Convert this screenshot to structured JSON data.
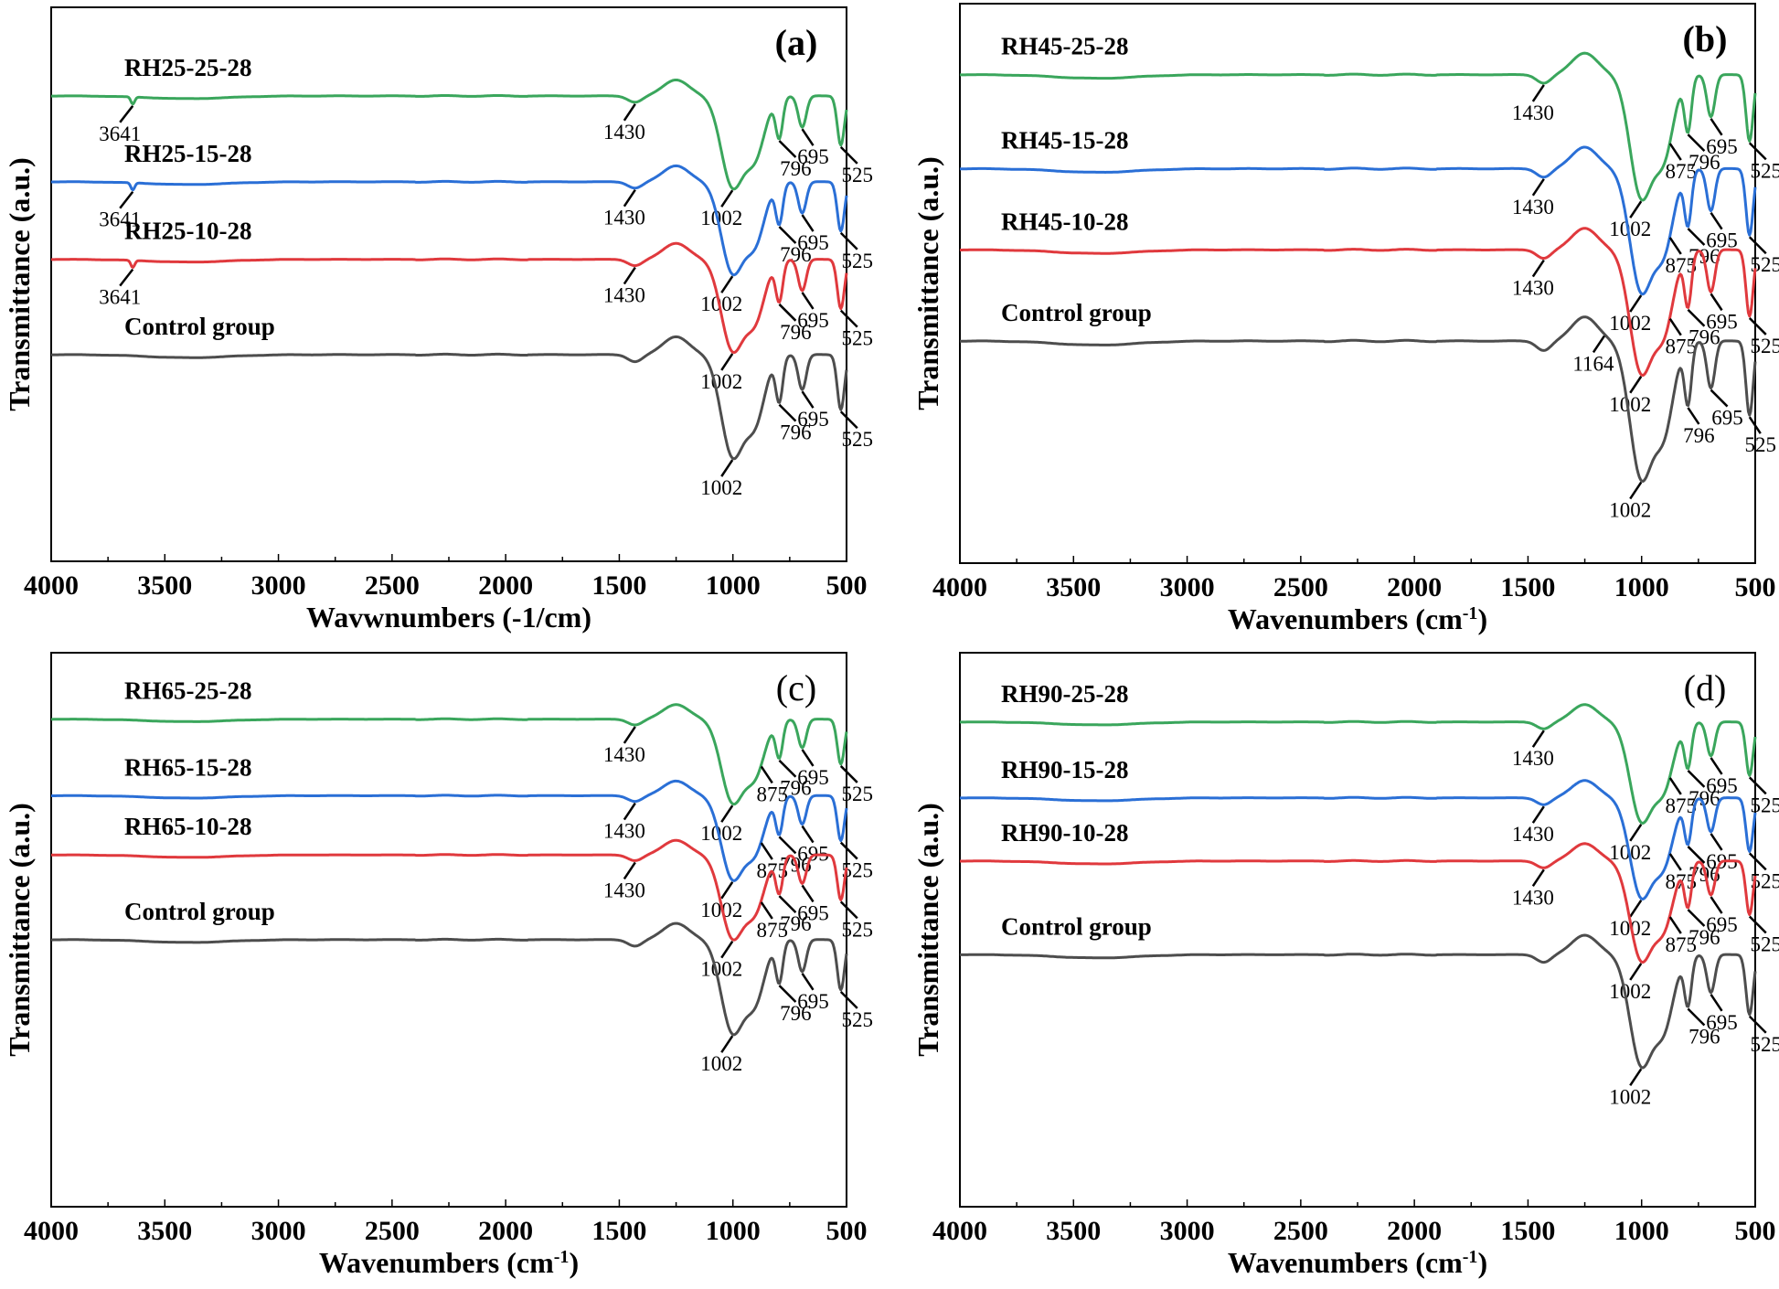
{
  "colors": {
    "RH-25": "#3aa65c",
    "RH-15": "#2a6fd6",
    "RH-10": "#e0393d",
    "Control": "#4d4d4d"
  },
  "chart_data": [
    {
      "type": "line",
      "panel": "(a)",
      "xlabel": "Wavwnumbers (-1/cm)",
      "ylabel": "Transmittance (a.u.)",
      "xlim": [
        4000,
        500
      ],
      "xticks": [
        "4000",
        "3500",
        "3000",
        "2500",
        "2000",
        "1500",
        "1000",
        "500"
      ],
      "series": [
        {
          "name": "RH25-25-28",
          "color_key": "RH-25",
          "peaks": [
            "3641",
            "1430",
            "1002",
            "796",
            "695",
            "525"
          ]
        },
        {
          "name": "RH25-15-28",
          "color_key": "RH-15",
          "peaks": [
            "3641",
            "1430",
            "1002",
            "796",
            "695",
            "525"
          ]
        },
        {
          "name": "RH25-10-28",
          "color_key": "RH-10",
          "peaks": [
            "3641",
            "1430",
            "1002",
            "796",
            "695",
            "525"
          ]
        },
        {
          "name": "Control group",
          "color_key": "Control",
          "peaks": [
            "1002",
            "796",
            "695",
            "525"
          ]
        }
      ]
    },
    {
      "type": "line",
      "panel": "(b)",
      "xlabel": "Wavenumbers (cm",
      "xlabel_sup": "-1",
      "xlabel_tail": ")",
      "ylabel": "Transmittance (a.u.)",
      "xlim": [
        4000,
        500
      ],
      "xticks": [
        "4000",
        "3500",
        "3000",
        "2500",
        "2000",
        "1500",
        "1000",
        "500"
      ],
      "series": [
        {
          "name": "RH45-25-28",
          "color_key": "RH-25",
          "peaks": [
            "1430",
            "1002",
            "875",
            "796",
            "695",
            "525"
          ]
        },
        {
          "name": "RH45-15-28",
          "color_key": "RH-15",
          "peaks": [
            "1430",
            "1002",
            "875",
            "796",
            "695",
            "525"
          ]
        },
        {
          "name": "RH45-10-28",
          "color_key": "RH-10",
          "peaks": [
            "1430",
            "1002",
            "875",
            "796",
            "695",
            "525"
          ]
        },
        {
          "name": "Control group",
          "color_key": "Control",
          "peaks": [
            "1164",
            "1002",
            "796",
            "695",
            "525"
          ]
        }
      ]
    },
    {
      "type": "line",
      "panel": "(c)",
      "xlabel": "Wavenumbers (cm",
      "xlabel_sup": "-1",
      "xlabel_tail": ")",
      "ylabel": "Transmittance (a.u.)",
      "xlim": [
        4000,
        500
      ],
      "xticks": [
        "4000",
        "3500",
        "3000",
        "2500",
        "2000",
        "1500",
        "1000",
        "500"
      ],
      "series": [
        {
          "name": "RH65-25-28",
          "color_key": "RH-25",
          "peaks": [
            "1430",
            "1002",
            "875",
            "796",
            "695",
            "525"
          ]
        },
        {
          "name": "RH65-15-28",
          "color_key": "RH-15",
          "peaks": [
            "1430",
            "1002",
            "875",
            "796",
            "695",
            "525"
          ]
        },
        {
          "name": "RH65-10-28",
          "color_key": "RH-10",
          "peaks": [
            "1430",
            "1002",
            "875",
            "796",
            "695",
            "525"
          ]
        },
        {
          "name": "Control group",
          "color_key": "Control",
          "peaks": [
            "1002",
            "796",
            "695",
            "525"
          ]
        }
      ]
    },
    {
      "type": "line",
      "panel": "(d)",
      "xlabel": "Wavenumbers (cm",
      "xlabel_sup": "-1",
      "xlabel_tail": ")",
      "ylabel": "Transmittance (a.u.)",
      "xlim": [
        4000,
        500
      ],
      "xticks": [
        "4000",
        "3500",
        "3000",
        "2500",
        "2000",
        "1500",
        "1000",
        "500"
      ],
      "series": [
        {
          "name": "RH90-25-28",
          "color_key": "RH-25",
          "peaks": [
            "1430",
            "1002",
            "875",
            "796",
            "695",
            "525"
          ]
        },
        {
          "name": "RH90-15-28",
          "color_key": "RH-15",
          "peaks": [
            "1430",
            "1002",
            "875",
            "796",
            "695",
            "525"
          ]
        },
        {
          "name": "RH90-10-28",
          "color_key": "RH-10",
          "peaks": [
            "1430",
            "1002",
            "875",
            "796",
            "695",
            "525"
          ]
        },
        {
          "name": "Control group",
          "color_key": "Control",
          "peaks": [
            "1002",
            "796",
            "695",
            "525"
          ]
        }
      ]
    }
  ]
}
